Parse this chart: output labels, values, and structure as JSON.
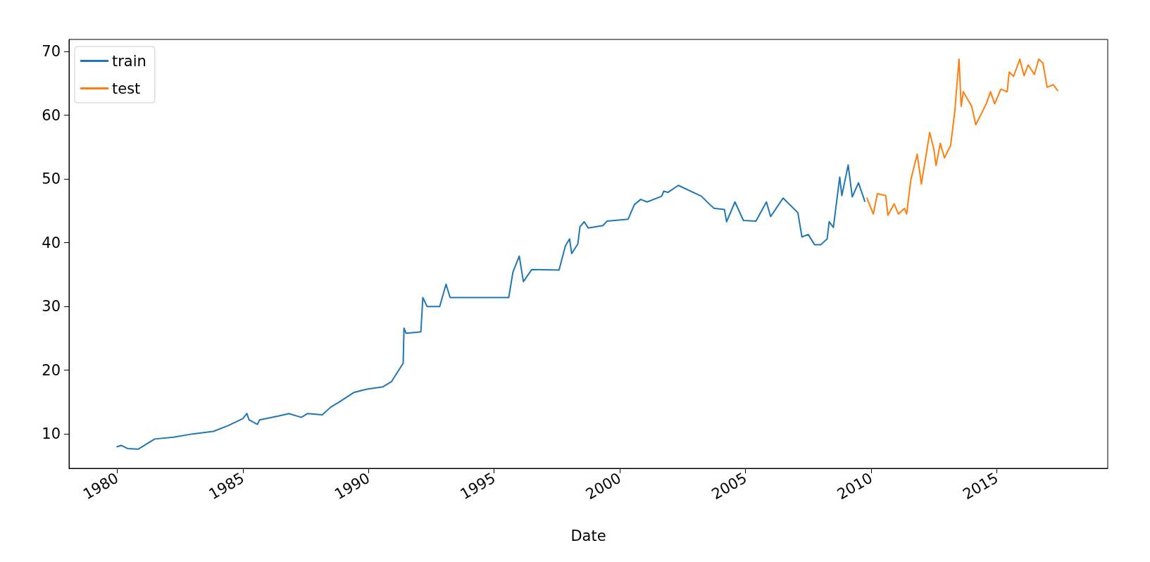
{
  "chart_data": {
    "type": "line",
    "xlabel": "Date",
    "legend": "top left",
    "grid": false,
    "xlim": [
      "1978-02",
      "2019-06"
    ],
    "xticks": [
      "1980",
      "1985",
      "1990",
      "1995",
      "2000",
      "2005",
      "2010",
      "2015"
    ],
    "ylim": [
      4.6,
      71.9
    ],
    "yticks": [
      10,
      20,
      30,
      40,
      50,
      60,
      70
    ],
    "series": [
      {
        "name": "train",
        "color": "#1f77b4",
        "x": [
          "1980-01",
          "1980-03",
          "1980-06",
          "1980-11",
          "1981-03",
          "1981-07",
          "1982-04",
          "1983-01",
          "1983-11",
          "1984-06",
          "1985-01",
          "1985-03",
          "1985-04",
          "1985-08",
          "1985-09",
          "1986-06",
          "1986-11",
          "1987-05",
          "1987-08",
          "1988-03",
          "1988-07",
          "1988-11",
          "1989-06",
          "1989-12",
          "1990-08",
          "1990-12",
          "1991-05-20",
          "1991-06-01",
          "1991-07-01",
          "1992-02",
          "1992-03",
          "1992-05",
          "1992-11",
          "1993-02",
          "1993-04",
          "1995-08",
          "1995-10",
          "1996-01",
          "1996-03",
          "1996-07",
          "1997-08",
          "1997-11",
          "1998-01",
          "1998-02",
          "1998-05",
          "1998-06",
          "1998-08",
          "1998-10",
          "1999-05",
          "1999-07",
          "2000-05",
          "2000-08",
          "2000-11",
          "2001-02",
          "2001-09",
          "2001-10",
          "2001-12",
          "2002-05",
          "2003-04",
          "2003-08",
          "2003-10",
          "2004-03",
          "2004-04",
          "2004-08",
          "2004-12",
          "2005-06",
          "2005-11",
          "2006-01",
          "2006-07",
          "2007-02",
          "2007-04",
          "2007-07",
          "2007-10",
          "2008-01",
          "2008-04",
          "2008-05",
          "2008-07",
          "2008-10",
          "2008-11",
          "2009-02",
          "2009-04",
          "2009-07",
          "2009-10"
        ],
        "values": [
          8.0,
          8.2,
          7.7,
          7.6,
          8.4,
          9.2,
          9.5,
          10.0,
          10.4,
          11.3,
          12.4,
          13.2,
          12.2,
          11.5,
          12.2,
          12.8,
          13.2,
          12.6,
          13.2,
          13.0,
          14.2,
          15.0,
          16.5,
          17.0,
          17.4,
          18.2,
          21.1,
          26.6,
          25.8,
          26.0,
          31.4,
          30.0,
          30.0,
          33.5,
          31.4,
          31.4,
          35.4,
          37.9,
          33.9,
          35.8,
          35.7,
          39.5,
          40.6,
          38.3,
          39.8,
          42.5,
          43.3,
          42.3,
          42.7,
          43.4,
          43.7,
          46.0,
          46.8,
          46.4,
          47.3,
          48.1,
          47.9,
          49.0,
          47.3,
          46.0,
          45.4,
          45.2,
          43.3,
          46.4,
          43.5,
          43.4,
          46.4,
          44.1,
          47.0,
          44.7,
          40.9,
          41.3,
          39.7,
          39.7,
          40.6,
          43.3,
          42.4,
          50.3,
          47.4,
          52.2,
          47.2,
          49.4,
          46.5
        ]
      },
      {
        "name": "test",
        "color": "#ff7f0e",
        "x": [
          "2009-11",
          "2010-02",
          "2010-04",
          "2010-08",
          "2010-09",
          "2010-12",
          "2011-02",
          "2011-05",
          "2011-06",
          "2011-08",
          "2011-11",
          "2012-01",
          "2012-05",
          "2012-07",
          "2012-08",
          "2012-10",
          "2012-12",
          "2013-03",
          "2013-05",
          "2013-07",
          "2013-08",
          "2013-09",
          "2014-01",
          "2014-03",
          "2014-08",
          "2014-10",
          "2014-12",
          "2015-03",
          "2015-06",
          "2015-07",
          "2015-09",
          "2015-12",
          "2016-02",
          "2016-04",
          "2016-07",
          "2016-09",
          "2016-11",
          "2017-01",
          "2017-04",
          "2017-06"
        ],
        "values": [
          47.0,
          44.5,
          47.7,
          47.4,
          44.3,
          46.1,
          44.5,
          45.4,
          44.5,
          49.9,
          53.9,
          49.2,
          57.3,
          54.6,
          52.1,
          55.6,
          53.3,
          55.3,
          60.7,
          68.8,
          61.4,
          63.7,
          61.4,
          58.5,
          61.8,
          63.7,
          61.8,
          64.1,
          63.7,
          66.8,
          66.1,
          68.8,
          66.2,
          67.9,
          66.4,
          68.8,
          68.2,
          64.4,
          64.8,
          63.9
        ]
      }
    ]
  }
}
